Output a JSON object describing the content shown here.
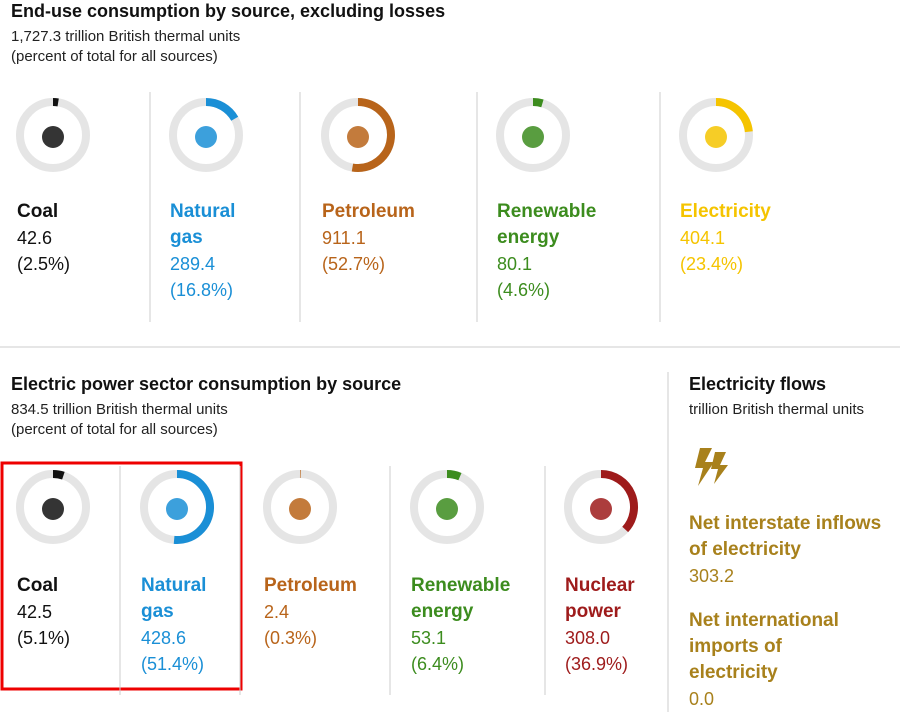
{
  "end_use": {
    "title": "End-use consumption by source, excluding losses",
    "subtitle": "1,727.3 trillion British thermal units",
    "note": "(percent of total for all sources)",
    "items": [
      {
        "label": "Coal",
        "value": "42.6",
        "percent": 2.5,
        "percent_label": "(2.5%)",
        "color": "#111111"
      },
      {
        "label": "Natural gas",
        "value": "289.4",
        "percent": 16.8,
        "percent_label": "(16.8%)",
        "color": "#1a8fd6"
      },
      {
        "label": "Petroleum",
        "value": "911.1",
        "percent": 52.7,
        "percent_label": "(52.7%)",
        "color": "#b8641a"
      },
      {
        "label": "Renewable energy",
        "value": "80.1",
        "percent": 4.6,
        "percent_label": "(4.6%)",
        "color": "#3c8c1e"
      },
      {
        "label": "Electricity",
        "value": "404.1",
        "percent": 23.4,
        "percent_label": "(23.4%)",
        "color": "#f5c400"
      }
    ]
  },
  "power_sector": {
    "title": "Electric power sector consumption by source",
    "subtitle": "834.5 trillion British thermal units",
    "note": "(percent of total for all sources)",
    "items": [
      {
        "label": "Coal",
        "value": "42.5",
        "percent": 5.1,
        "percent_label": "(5.1%)",
        "color": "#111111"
      },
      {
        "label": "Natural gas",
        "value": "428.6",
        "percent": 51.4,
        "percent_label": "(51.4%)",
        "color": "#1a8fd6"
      },
      {
        "label": "Petroleum",
        "value": "2.4",
        "percent": 0.3,
        "percent_label": "(0.3%)",
        "color": "#b8641a"
      },
      {
        "label": "Renewable energy",
        "value": "53.1",
        "percent": 6.4,
        "percent_label": "(6.4%)",
        "color": "#3c8c1e"
      },
      {
        "label": "Nuclear power",
        "value": "308.0",
        "percent": 36.9,
        "percent_label": "(36.9%)",
        "color": "#9e1b1b"
      }
    ]
  },
  "flows": {
    "title": "Electricity flows",
    "subtitle": "trillion British thermal units",
    "color": "#a8811c",
    "items": [
      {
        "label": "Net interstate inflows of electricity",
        "value": "303.2"
      },
      {
        "label": "Net international imports of electricity",
        "value": "0.0"
      }
    ]
  }
}
